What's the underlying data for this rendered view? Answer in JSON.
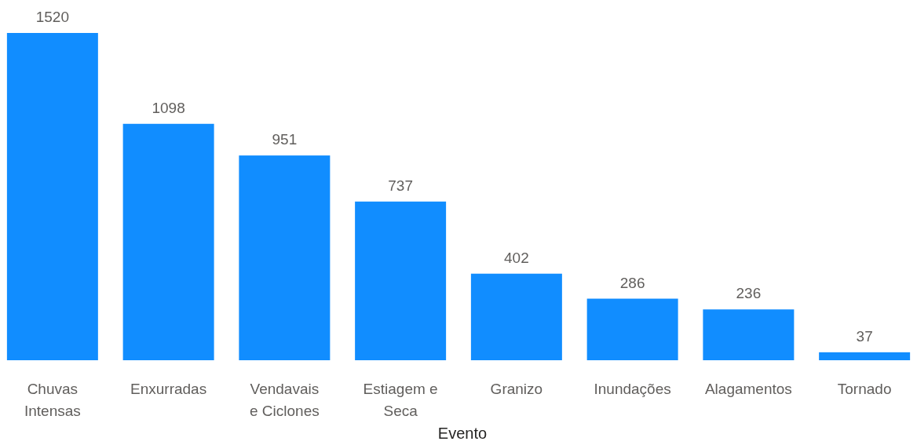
{
  "chart_data": {
    "type": "bar",
    "xlabel": "Evento",
    "categories": [
      "Chuvas Intensas",
      "Enxurradas",
      "Vendavais e Ciclones",
      "Estiagem e Seca",
      "Granizo",
      "Inundações",
      "Alagamentos",
      "Tornado"
    ],
    "values": [
      1520,
      1098,
      951,
      737,
      402,
      286,
      236,
      37
    ],
    "color": "#118dff",
    "data_labels": true
  }
}
